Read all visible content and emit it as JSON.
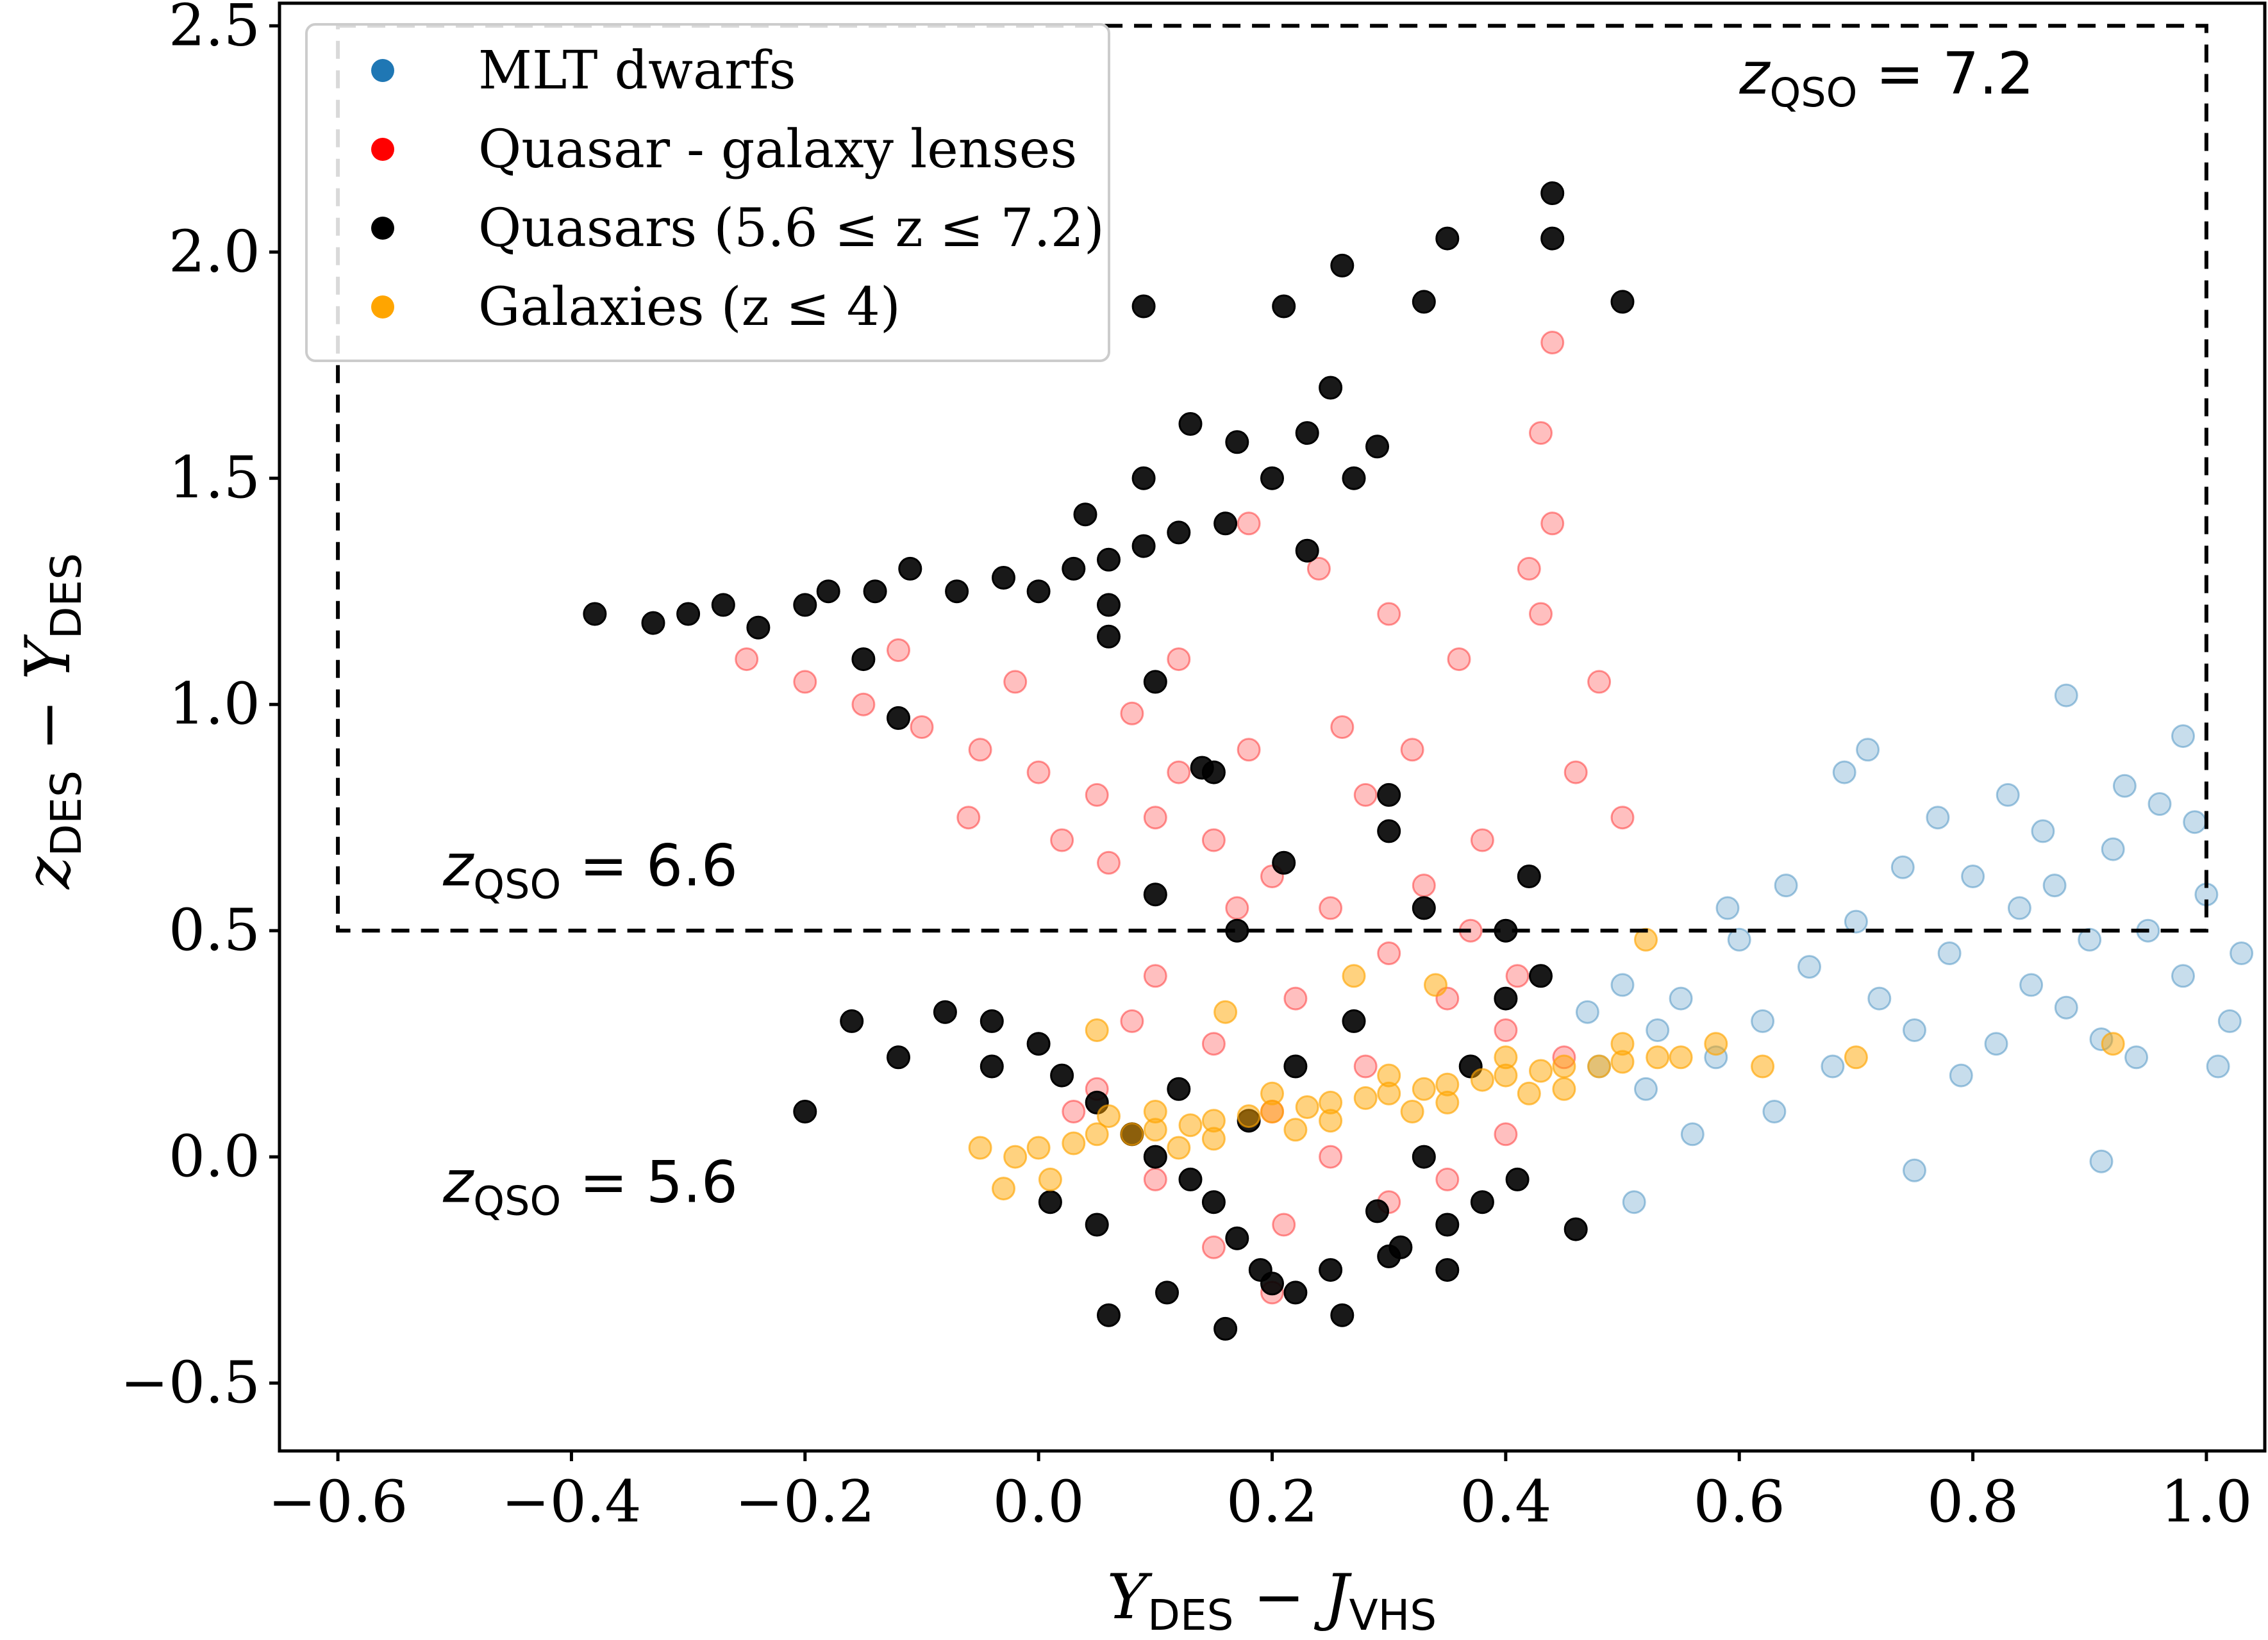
{
  "chart_data": {
    "type": "scatter",
    "xlabel": {
      "main": "Y",
      "sub1": "DES",
      "mid": " − J",
      "sub2": "VHS"
    },
    "ylabel": {
      "main": "z",
      "sub1": "DES",
      "mid": " − Y",
      "sub2": "DES"
    },
    "xlim": [
      -0.65,
      1.05
    ],
    "ylim": [
      -0.65,
      2.55
    ],
    "xticks": [
      -0.6,
      -0.4,
      -0.2,
      0.0,
      0.2,
      0.4,
      0.6,
      0.8,
      1.0
    ],
    "xtick_labels": [
      "−0.6",
      "−0.4",
      "−0.2",
      "0.0",
      "0.2",
      "0.4",
      "0.6",
      "0.8",
      "1.0"
    ],
    "yticks": [
      -0.5,
      0.0,
      0.5,
      1.0,
      1.5,
      2.0,
      2.5
    ],
    "ytick_labels": [
      "−0.5",
      "0.0",
      "0.5",
      "1.0",
      "1.5",
      "2.0",
      "2.5"
    ],
    "legend_position": "upper-left",
    "selection_box": {
      "x": [
        -0.6,
        1.0
      ],
      "y": [
        0.5,
        2.5
      ],
      "style": "dashed"
    },
    "annotations": [
      {
        "text": "z",
        "sub": "QSO",
        "rest": " = 7.2",
        "x": 0.6,
        "y": 2.35
      },
      {
        "text": "z",
        "sub": "QSO",
        "rest": " = 6.6",
        "x": -0.51,
        "y": 0.6
      },
      {
        "text": "z",
        "sub": "QSO",
        "rest": " = 5.6",
        "x": -0.51,
        "y": -0.1
      }
    ],
    "series": [
      {
        "name": "MLT dwarfs",
        "color": "#1f77b4",
        "values": [
          [
            0.68,
            0.2
          ],
          [
            0.72,
            0.35
          ],
          [
            0.75,
            0.28
          ],
          [
            0.78,
            0.45
          ],
          [
            0.8,
            0.62
          ],
          [
            0.82,
            0.25
          ],
          [
            0.84,
            0.55
          ],
          [
            0.86,
            0.72
          ],
          [
            0.88,
            0.33
          ],
          [
            0.9,
            0.48
          ],
          [
            0.92,
            0.68
          ],
          [
            0.94,
            0.22
          ],
          [
            0.96,
            0.78
          ],
          [
            0.98,
            0.4
          ],
          [
            1.0,
            0.58
          ],
          [
            1.02,
            0.3
          ],
          [
            0.7,
            0.52
          ],
          [
            0.74,
            0.64
          ],
          [
            0.79,
            0.18
          ],
          [
            0.83,
            0.8
          ],
          [
            0.87,
            0.6
          ],
          [
            0.91,
            0.26
          ],
          [
            0.95,
            0.5
          ],
          [
            0.99,
            0.74
          ],
          [
            1.03,
            0.45
          ],
          [
            0.69,
            0.85
          ],
          [
            0.77,
            0.75
          ],
          [
            0.85,
            0.38
          ],
          [
            0.93,
            0.82
          ],
          [
            1.01,
            0.2
          ],
          [
            0.66,
            0.42
          ],
          [
            0.62,
            0.3
          ],
          [
            0.58,
            0.22
          ],
          [
            0.55,
            0.35
          ],
          [
            0.52,
            0.15
          ],
          [
            0.6,
            0.48
          ],
          [
            0.64,
            0.6
          ],
          [
            0.56,
            0.05
          ],
          [
            0.53,
            0.28
          ],
          [
            0.5,
            0.38
          ],
          [
            0.48,
            0.2
          ],
          [
            0.47,
            0.32
          ],
          [
            0.63,
            0.1
          ],
          [
            0.59,
            0.55
          ],
          [
            0.71,
            0.9
          ],
          [
            0.88,
            1.02
          ],
          [
            0.98,
            0.93
          ],
          [
            0.91,
            -0.01
          ],
          [
            0.75,
            -0.03
          ],
          [
            0.51,
            -0.1
          ]
        ]
      },
      {
        "name": "Quasar - galaxy lenses",
        "color": "#ff0000",
        "values": [
          [
            -0.25,
            1.1
          ],
          [
            -0.2,
            1.05
          ],
          [
            -0.15,
            1.0
          ],
          [
            -0.1,
            0.95
          ],
          [
            -0.05,
            0.9
          ],
          [
            0.0,
            0.85
          ],
          [
            0.05,
            0.8
          ],
          [
            0.1,
            0.75
          ],
          [
            0.15,
            0.7
          ],
          [
            0.2,
            0.62
          ],
          [
            0.25,
            0.55
          ],
          [
            0.3,
            0.45
          ],
          [
            0.35,
            0.35
          ],
          [
            0.4,
            0.28
          ],
          [
            0.45,
            0.22
          ],
          [
            -0.12,
            1.12
          ],
          [
            -0.02,
            1.05
          ],
          [
            0.08,
            0.98
          ],
          [
            0.18,
            0.9
          ],
          [
            0.28,
            0.8
          ],
          [
            0.38,
            0.7
          ],
          [
            0.43,
            1.2
          ],
          [
            0.44,
            1.4
          ],
          [
            0.43,
            1.6
          ],
          [
            0.44,
            1.8
          ],
          [
            0.42,
            1.3
          ],
          [
            0.36,
            1.1
          ],
          [
            0.3,
            1.2
          ],
          [
            0.24,
            1.3
          ],
          [
            0.18,
            1.4
          ],
          [
            0.12,
            1.1
          ],
          [
            0.06,
            0.65
          ],
          [
            0.1,
            0.4
          ],
          [
            0.15,
            0.25
          ],
          [
            0.2,
            0.1
          ],
          [
            0.25,
            0.0
          ],
          [
            0.3,
            -0.1
          ],
          [
            0.35,
            -0.05
          ],
          [
            0.4,
            0.05
          ],
          [
            0.05,
            0.15
          ],
          [
            0.1,
            -0.05
          ],
          [
            0.15,
            -0.2
          ],
          [
            0.2,
            -0.3
          ],
          [
            0.28,
            0.2
          ],
          [
            0.33,
            0.6
          ],
          [
            0.22,
            0.35
          ],
          [
            0.17,
            0.55
          ],
          [
            0.12,
            0.85
          ],
          [
            0.02,
            0.7
          ],
          [
            -0.06,
            0.75
          ],
          [
            0.46,
            0.85
          ],
          [
            0.48,
            1.05
          ],
          [
            0.5,
            0.75
          ],
          [
            0.26,
            0.95
          ],
          [
            0.32,
            0.9
          ],
          [
            0.37,
            0.5
          ],
          [
            0.41,
            0.4
          ],
          [
            0.08,
            0.3
          ],
          [
            0.03,
            0.1
          ],
          [
            0.21,
            -0.15
          ]
        ]
      },
      {
        "name": "Quasars (5.6 ≤ z ≤ 7.2)",
        "color": "#000000",
        "values": [
          [
            -0.38,
            1.2
          ],
          [
            -0.33,
            1.18
          ],
          [
            -0.3,
            1.2
          ],
          [
            -0.27,
            1.22
          ],
          [
            -0.24,
            1.17
          ],
          [
            -0.2,
            1.22
          ],
          [
            -0.18,
            1.25
          ],
          [
            -0.14,
            1.25
          ],
          [
            -0.11,
            1.3
          ],
          [
            -0.07,
            1.25
          ],
          [
            -0.03,
            1.28
          ],
          [
            0.0,
            1.25
          ],
          [
            0.03,
            1.3
          ],
          [
            0.06,
            1.32
          ],
          [
            0.09,
            1.35
          ],
          [
            0.12,
            1.38
          ],
          [
            0.16,
            1.4
          ],
          [
            0.2,
            1.5
          ],
          [
            0.23,
            1.6
          ],
          [
            0.29,
            1.57
          ],
          [
            0.17,
            1.58
          ],
          [
            0.13,
            1.62
          ],
          [
            0.09,
            1.5
          ],
          [
            0.06,
            1.22
          ],
          [
            0.04,
            1.42
          ],
          [
            0.25,
            1.7
          ],
          [
            0.26,
            1.97
          ],
          [
            0.35,
            2.03
          ],
          [
            0.44,
            2.13
          ],
          [
            0.44,
            2.03
          ],
          [
            0.5,
            1.89
          ],
          [
            0.33,
            1.89
          ],
          [
            0.09,
            1.88
          ],
          [
            0.21,
            1.88
          ],
          [
            0.27,
            1.5
          ],
          [
            0.23,
            1.34
          ],
          [
            0.06,
            1.15
          ],
          [
            0.1,
            1.05
          ],
          [
            -0.15,
            1.1
          ],
          [
            -0.12,
            0.97
          ],
          [
            0.14,
            0.86
          ],
          [
            0.15,
            0.85
          ],
          [
            0.3,
            0.8
          ],
          [
            0.3,
            0.72
          ],
          [
            0.42,
            0.62
          ],
          [
            0.33,
            0.55
          ],
          [
            0.21,
            0.65
          ],
          [
            0.1,
            0.58
          ],
          [
            0.17,
            0.5
          ],
          [
            0.4,
            0.5
          ],
          [
            -0.16,
            0.3
          ],
          [
            -0.12,
            0.22
          ],
          [
            -0.08,
            0.32
          ],
          [
            -0.04,
            0.3
          ],
          [
            0.0,
            0.25
          ],
          [
            0.02,
            0.18
          ],
          [
            0.05,
            0.12
          ],
          [
            0.08,
            0.05
          ],
          [
            0.1,
            0.0
          ],
          [
            0.13,
            -0.05
          ],
          [
            0.15,
            -0.1
          ],
          [
            0.17,
            -0.18
          ],
          [
            0.19,
            -0.25
          ],
          [
            0.22,
            -0.3
          ],
          [
            0.26,
            -0.35
          ],
          [
            0.3,
            -0.22
          ],
          [
            0.35,
            -0.15
          ],
          [
            0.38,
            -0.1
          ],
          [
            0.41,
            -0.05
          ],
          [
            0.46,
            -0.16
          ],
          [
            0.06,
            -0.35
          ],
          [
            0.11,
            -0.3
          ],
          [
            0.16,
            -0.38
          ],
          [
            0.2,
            -0.28
          ],
          [
            0.25,
            -0.25
          ],
          [
            0.29,
            -0.12
          ],
          [
            0.33,
            0.0
          ],
          [
            0.37,
            0.2
          ],
          [
            0.4,
            0.35
          ],
          [
            0.43,
            0.4
          ],
          [
            -0.2,
            0.1
          ],
          [
            -0.04,
            0.2
          ],
          [
            0.01,
            -0.1
          ],
          [
            0.05,
            -0.15
          ],
          [
            0.12,
            0.15
          ],
          [
            0.18,
            0.08
          ],
          [
            0.22,
            0.2
          ],
          [
            0.27,
            0.3
          ],
          [
            0.31,
            -0.2
          ],
          [
            0.35,
            -0.25
          ]
        ]
      },
      {
        "name": "Galaxies (z ≤ 4)",
        "color": "#ffa500",
        "values": [
          [
            -0.05,
            0.02
          ],
          [
            -0.02,
            0.0
          ],
          [
            0.0,
            0.02
          ],
          [
            0.03,
            0.03
          ],
          [
            0.05,
            0.05
          ],
          [
            0.08,
            0.05
          ],
          [
            0.1,
            0.06
          ],
          [
            0.13,
            0.07
          ],
          [
            0.15,
            0.08
          ],
          [
            0.18,
            0.09
          ],
          [
            0.2,
            0.1
          ],
          [
            0.23,
            0.11
          ],
          [
            0.25,
            0.12
          ],
          [
            0.28,
            0.13
          ],
          [
            0.3,
            0.14
          ],
          [
            0.33,
            0.15
          ],
          [
            0.35,
            0.16
          ],
          [
            0.38,
            0.17
          ],
          [
            0.4,
            0.18
          ],
          [
            0.43,
            0.19
          ],
          [
            0.45,
            0.2
          ],
          [
            0.48,
            0.2
          ],
          [
            0.5,
            0.21
          ],
          [
            0.53,
            0.22
          ],
          [
            0.55,
            0.22
          ],
          [
            0.58,
            0.25
          ],
          [
            0.62,
            0.2
          ],
          [
            0.1,
            0.1
          ],
          [
            0.15,
            0.04
          ],
          [
            0.2,
            0.14
          ],
          [
            0.25,
            0.08
          ],
          [
            0.3,
            0.18
          ],
          [
            0.35,
            0.12
          ],
          [
            0.4,
            0.22
          ],
          [
            0.45,
            0.15
          ],
          [
            0.5,
            0.25
          ],
          [
            0.12,
            0.02
          ],
          [
            0.22,
            0.06
          ],
          [
            0.32,
            0.1
          ],
          [
            0.42,
            0.14
          ],
          [
            0.05,
            0.28
          ],
          [
            0.16,
            0.32
          ],
          [
            0.27,
            0.4
          ],
          [
            0.34,
            0.38
          ],
          [
            0.52,
            0.48
          ],
          [
            0.7,
            0.22
          ],
          [
            0.92,
            0.25
          ],
          [
            -0.03,
            -0.07
          ],
          [
            0.01,
            -0.05
          ],
          [
            0.06,
            0.09
          ]
        ]
      }
    ]
  }
}
